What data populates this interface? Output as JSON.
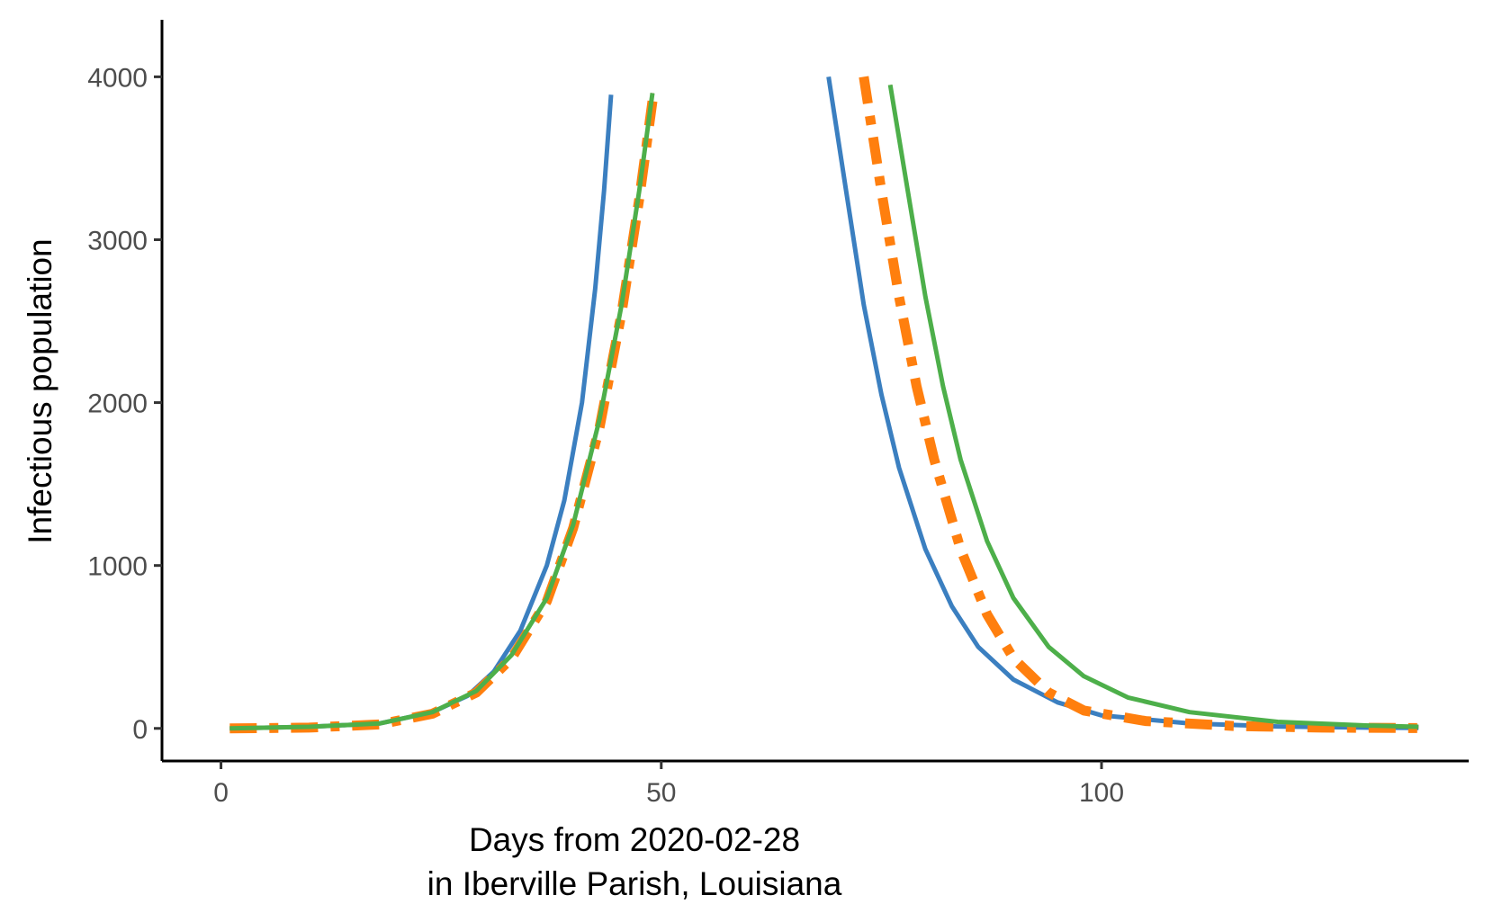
{
  "chart_data": {
    "type": "line",
    "xlabel_line1": "Days from 2020-02-28",
    "xlabel_line2": "in Iberville Parish, Louisiana",
    "ylabel": "Infectious population",
    "xlim": [
      -6.7,
      141.7
    ],
    "ylim": [
      -200,
      4350
    ],
    "x_ticks": [
      0,
      50,
      100
    ],
    "x_tick_labels": [
      "0",
      "50",
      "100"
    ],
    "y_ticks": [
      0,
      1000,
      2000,
      3000,
      4000
    ],
    "y_tick_labels": [
      "0",
      "1000",
      "2000",
      "3000",
      "4000"
    ],
    "grid": false,
    "legend": "none",
    "series": [
      {
        "color": "#3b7fc0",
        "dash": "solid",
        "rising": [
          [
            1,
            0
          ],
          [
            10,
            10
          ],
          [
            18,
            30
          ],
          [
            24,
            100
          ],
          [
            28,
            200
          ],
          [
            31,
            350
          ],
          [
            34,
            600
          ],
          [
            37,
            1000
          ],
          [
            39,
            1400
          ],
          [
            41,
            2000
          ],
          [
            42.5,
            2700
          ],
          [
            43.5,
            3300
          ],
          [
            44.3,
            3890
          ]
        ],
        "falling": [
          [
            69,
            4000
          ],
          [
            71,
            3300
          ],
          [
            73,
            2600
          ],
          [
            75,
            2050
          ],
          [
            77,
            1600
          ],
          [
            80,
            1100
          ],
          [
            83,
            750
          ],
          [
            86,
            500
          ],
          [
            90,
            300
          ],
          [
            95,
            160
          ],
          [
            100,
            80
          ],
          [
            110,
            30
          ],
          [
            120,
            12
          ],
          [
            130,
            5
          ],
          [
            136,
            3
          ]
        ]
      },
      {
        "color": "#d62728",
        "dash": "longdash",
        "rising": [
          [
            1,
            0
          ],
          [
            10,
            10
          ],
          [
            18,
            30
          ],
          [
            24,
            100
          ],
          [
            29,
            230
          ],
          [
            33,
            450
          ],
          [
            37,
            800
          ],
          [
            40,
            1250
          ],
          [
            43,
            1900
          ],
          [
            45.5,
            2600
          ],
          [
            47.5,
            3300
          ],
          [
            49,
            3900
          ]
        ],
        "falling": [
          [
            76,
            3950
          ],
          [
            78,
            3300
          ],
          [
            80,
            2650
          ],
          [
            82,
            2100
          ],
          [
            84,
            1650
          ],
          [
            87,
            1150
          ],
          [
            90,
            800
          ],
          [
            94,
            500
          ],
          [
            98,
            320
          ],
          [
            103,
            190
          ],
          [
            110,
            100
          ],
          [
            120,
            40
          ],
          [
            130,
            18
          ],
          [
            136,
            10
          ]
        ]
      },
      {
        "color": "#ff7f0e",
        "dash": "dotdash",
        "rising": [
          [
            1,
            0
          ],
          [
            10,
            5
          ],
          [
            18,
            25
          ],
          [
            24,
            90
          ],
          [
            29,
            220
          ],
          [
            33,
            430
          ],
          [
            37,
            780
          ],
          [
            40,
            1230
          ],
          [
            43,
            1850
          ],
          [
            45.5,
            2550
          ],
          [
            47.5,
            3250
          ],
          [
            49,
            3850
          ]
        ],
        "falling": [
          [
            73,
            4000
          ],
          [
            75,
            3300
          ],
          [
            77,
            2650
          ],
          [
            79,
            2100
          ],
          [
            81,
            1650
          ],
          [
            84,
            1100
          ],
          [
            87,
            700
          ],
          [
            90,
            430
          ],
          [
            94,
            220
          ],
          [
            98,
            110
          ],
          [
            105,
            45
          ],
          [
            115,
            15
          ],
          [
            125,
            5
          ],
          [
            136,
            2
          ]
        ]
      },
      {
        "color": "#4daf4a",
        "dash": "solid",
        "rising": [
          [
            1,
            0
          ],
          [
            10,
            10
          ],
          [
            18,
            30
          ],
          [
            24,
            100
          ],
          [
            29,
            230
          ],
          [
            33,
            450
          ],
          [
            37,
            800
          ],
          [
            40,
            1250
          ],
          [
            43,
            1900
          ],
          [
            45.5,
            2600
          ],
          [
            47.5,
            3300
          ],
          [
            49,
            3900
          ]
        ],
        "falling": [
          [
            76,
            3950
          ],
          [
            78,
            3300
          ],
          [
            80,
            2650
          ],
          [
            82,
            2100
          ],
          [
            84,
            1650
          ],
          [
            87,
            1150
          ],
          [
            90,
            800
          ],
          [
            94,
            500
          ],
          [
            98,
            320
          ],
          [
            103,
            190
          ],
          [
            110,
            100
          ],
          [
            120,
            40
          ],
          [
            130,
            18
          ],
          [
            136,
            10
          ]
        ]
      }
    ]
  }
}
